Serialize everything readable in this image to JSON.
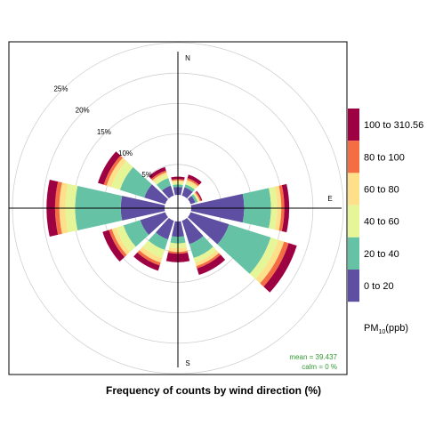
{
  "chart_data": {
    "type": "windrose",
    "title": "Frequency of counts by wind direction (%)",
    "compass": {
      "north": "N",
      "east": "E",
      "south": "S",
      "west": ""
    },
    "radial_ticks": [
      {
        "value": 5,
        "label": "5%"
      },
      {
        "value": 10,
        "label": "10%"
      },
      {
        "value": 15,
        "label": "15%"
      },
      {
        "value": 20,
        "label": "20%"
      },
      {
        "value": 25,
        "label": "25%"
      }
    ],
    "rmax": 25,
    "annotation": {
      "mean": "mean = 39.437",
      "calm": "calm = 0 %"
    },
    "legend": {
      "title_main": "PM",
      "title_sub": "10",
      "title_unit": "(ppb)",
      "bins": [
        {
          "label": "100 to 310.56",
          "color": "#9E0142"
        },
        {
          "label": "80 to 100",
          "color": "#F46D43"
        },
        {
          "label": "60 to 80",
          "color": "#FEE08B"
        },
        {
          "label": "40 to 60",
          "color": "#E6F598"
        },
        {
          "label": "20 to 40",
          "color": "#66C2A5"
        },
        {
          "label": "0 to 20",
          "color": "#5E4FA2"
        }
      ]
    },
    "bin_order_from_center": [
      "0 to 20",
      "20 to 40",
      "40 to 60",
      "60 to 80",
      "80 to 100",
      "100 to 310.56"
    ],
    "directions": [
      0,
      30,
      60,
      90,
      120,
      150,
      180,
      210,
      240,
      270,
      300,
      330
    ],
    "cumulative_percent": [
      [
        1.3,
        1.7,
        2.1,
        2.4,
        2.6,
        3.0
      ],
      [
        1.4,
        1.9,
        2.3,
        2.7,
        3.0,
        3.6
      ],
      [
        0.8,
        1.2,
        1.4,
        1.6,
        1.8,
        2.0
      ],
      [
        8.7,
        13.1,
        14.1,
        14.8,
        15.3,
        16.1
      ],
      [
        6.6,
        13.8,
        15.1,
        16.1,
        16.9,
        18.3
      ],
      [
        4.0,
        6.4,
        7.2,
        7.8,
        8.2,
        9.3
      ],
      [
        2.5,
        3.6,
        4.4,
        5.0,
        5.3,
        6.7
      ],
      [
        3.2,
        5.0,
        6.4,
        7.2,
        7.7,
        8.6
      ],
      [
        4.3,
        7.2,
        8.5,
        9.2,
        9.7,
        10.8
      ],
      [
        7.2,
        14.7,
        16.3,
        17.3,
        18.0,
        19.4
      ],
      [
        3.6,
        7.8,
        9.3,
        10.1,
        10.6,
        11.6
      ],
      [
        1.7,
        3.0,
        3.6,
        4.0,
        4.3,
        4.9
      ]
    ]
  }
}
